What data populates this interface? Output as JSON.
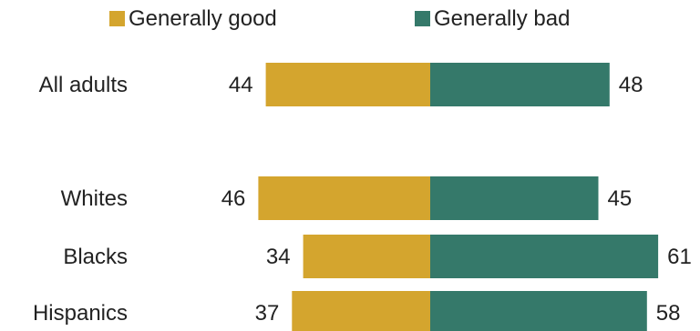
{
  "chart_data": {
    "type": "bar",
    "orientation": "horizontal-diverging",
    "categories": [
      "All adults",
      "Whites",
      "Blacks",
      "Hispanics"
    ],
    "series": [
      {
        "name": "Generally good",
        "values": [
          44,
          46,
          34,
          37
        ],
        "color": "#D4A52E"
      },
      {
        "name": "Generally bad",
        "values": [
          48,
          45,
          61,
          58
        ],
        "color": "#35796A"
      }
    ],
    "title": "",
    "xlabel": "",
    "ylabel": "",
    "legend_position": "top",
    "grid": false
  }
}
